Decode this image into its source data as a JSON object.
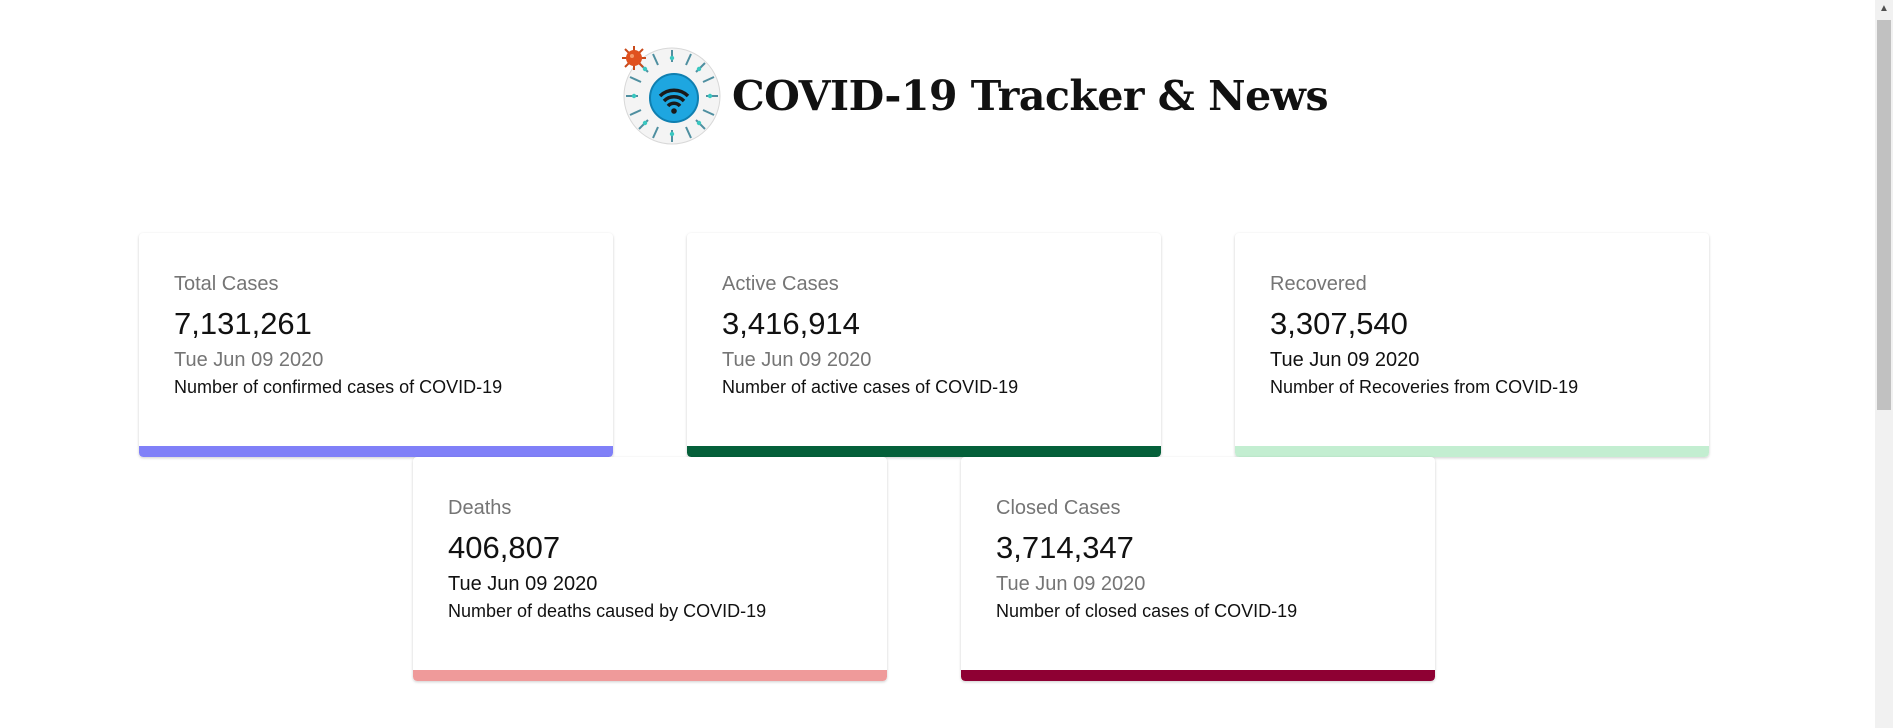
{
  "header": {
    "title": "COVID-19 Tracker & News",
    "logo_icon": "globe-wifi-virus-logo"
  },
  "cards": [
    {
      "label": "Total Cases",
      "value": "7,131,261",
      "date": "Tue Jun 09 2020",
      "description": "Number of confirmed cases of COVID-19",
      "color": "#8080f8"
    },
    {
      "label": "Active Cases",
      "value": "3,416,914",
      "date": "Tue Jun 09 2020",
      "description": "Number of active cases of COVID-19",
      "color": "#05603a"
    },
    {
      "label": "Recovered",
      "value": "3,307,540",
      "date": "Tue Jun 09 2020",
      "description": "Number of Recoveries from COVID-19",
      "color": "#c3eed1"
    },
    {
      "label": "Deaths",
      "value": "406,807",
      "date": "Tue Jun 09 2020",
      "description": "Number of deaths caused by COVID-19",
      "color": "#ef9a9a"
    },
    {
      "label": "Closed Cases",
      "value": "3,714,347",
      "date": "Tue Jun 09 2020",
      "description": "Number of closed cases of COVID-19",
      "color": "#8e0033"
    }
  ]
}
